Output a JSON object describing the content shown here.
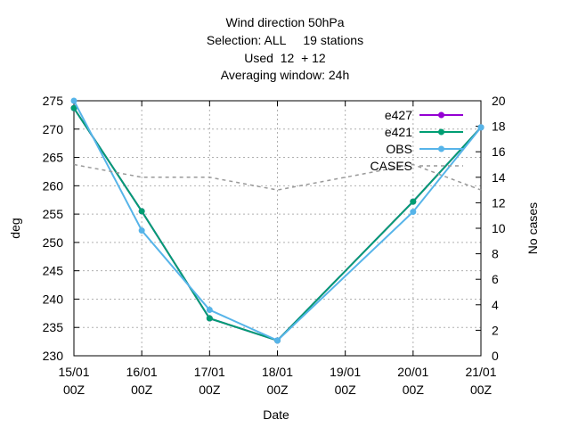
{
  "chart_data": {
    "type": "line",
    "title_lines": [
      "Wind direction 50hPa",
      "Selection: ALL     19 stations",
      "Used  12  + 12",
      "Averaging window: 24h"
    ],
    "xlabel": "Date",
    "ylabel": "deg",
    "y2label": "No cases",
    "x_ticks": [
      {
        "line1": "15/01",
        "line2": "00Z"
      },
      {
        "line1": "16/01",
        "line2": "00Z"
      },
      {
        "line1": "17/01",
        "line2": "00Z"
      },
      {
        "line1": "18/01",
        "line2": "00Z"
      },
      {
        "line1": "19/01",
        "line2": "00Z"
      },
      {
        "line1": "20/01",
        "line2": "00Z"
      },
      {
        "line1": "21/01",
        "line2": "00Z"
      }
    ],
    "xlim": [
      0,
      6
    ],
    "ylim": [
      230,
      275
    ],
    "y_ticks": [
      230,
      235,
      240,
      245,
      250,
      255,
      260,
      265,
      270,
      275
    ],
    "y2lim": [
      0,
      20
    ],
    "y2_ticks": [
      0,
      2,
      4,
      6,
      8,
      10,
      12,
      14,
      16,
      18,
      20
    ],
    "grid": true,
    "legend_position": "top-right",
    "series": [
      {
        "name": "e427",
        "color": "#9400d3",
        "axis": "y",
        "dash": false,
        "marker": true,
        "x": [
          0,
          1,
          2,
          3,
          5,
          6
        ],
        "y": [
          273.7,
          255.5,
          236.6,
          232.7,
          257.2,
          270.3
        ]
      },
      {
        "name": "e421",
        "color": "#009e73",
        "axis": "y",
        "dash": false,
        "marker": true,
        "x": [
          0,
          1,
          2,
          3,
          5,
          6
        ],
        "y": [
          273.7,
          255.5,
          236.6,
          232.7,
          257.2,
          270.3
        ]
      },
      {
        "name": "OBS",
        "color": "#56b4e9",
        "axis": "y",
        "dash": false,
        "marker": true,
        "x": [
          0,
          1,
          2,
          3,
          5,
          6
        ],
        "y": [
          275.0,
          252.1,
          238.1,
          232.7,
          255.4,
          270.3
        ]
      },
      {
        "name": "CASES",
        "color": "#999999",
        "axis": "y2",
        "dash": true,
        "marker": false,
        "x": [
          0,
          1,
          2,
          3,
          4,
          5,
          6
        ],
        "y": [
          15,
          14,
          14,
          13,
          14,
          15,
          13
        ]
      }
    ]
  }
}
